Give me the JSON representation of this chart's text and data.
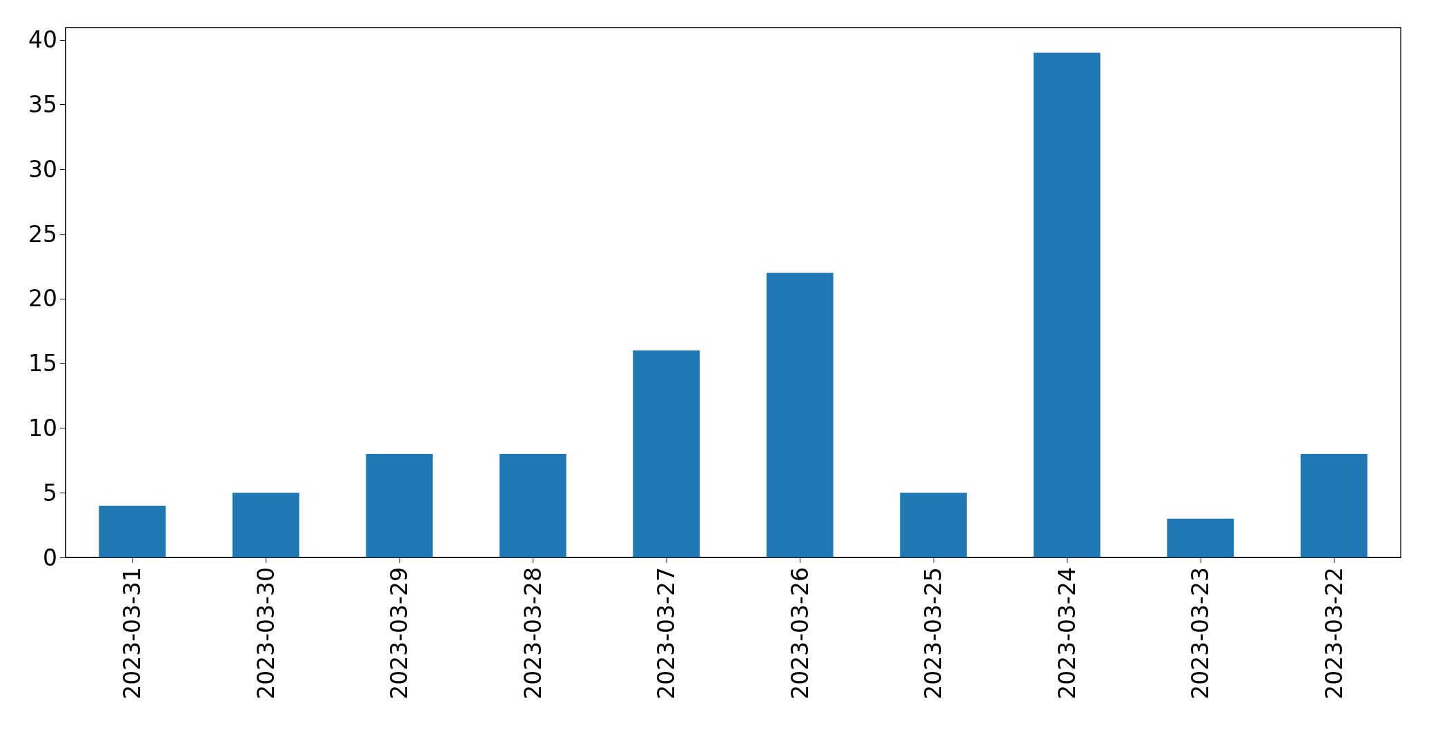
{
  "chart_data": {
    "type": "bar",
    "categories": [
      "2023-03-31",
      "2023-03-30",
      "2023-03-29",
      "2023-03-28",
      "2023-03-27",
      "2023-03-26",
      "2023-03-25",
      "2023-03-24",
      "2023-03-23",
      "2023-03-22"
    ],
    "values": [
      4,
      5,
      8,
      8,
      16,
      22,
      5,
      39,
      3,
      8
    ],
    "color": "#1f77b4",
    "ylim": [
      0,
      40.95
    ],
    "yticks": [
      0,
      5,
      10,
      15,
      20,
      25,
      30,
      35,
      40
    ],
    "grid": false
  }
}
